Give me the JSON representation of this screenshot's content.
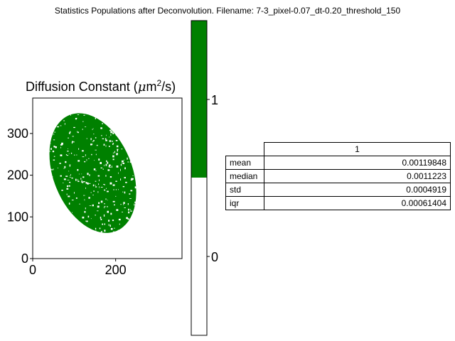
{
  "figure": {
    "title": "Statistics Populations after Deconvolution. Filename: 7-3_pixel-0.07_dt-0.20_threshold_150"
  },
  "chart_data": [
    {
      "type": "heatmap",
      "title": "Diffusion Constant (μm²/s)",
      "title_parts": {
        "prefix": "Diffusion Constant (",
        "mu": "μ",
        "unit": "m",
        "sup": "2",
        "suffix": "/s)"
      },
      "xlim": [
        0,
        360
      ],
      "ylim": [
        0,
        385
      ],
      "x_ticks": [
        0,
        200
      ],
      "y_ticks": [
        0,
        100,
        200,
        300
      ],
      "population_color": "#008000",
      "background_color": "#ffffff",
      "shape": "elliptical cell, centre about (145, 205), semi-axes about 95 by 150, tilted from upper-left to lower-right"
    },
    {
      "type": "colorbar",
      "tick_labels": [
        "0",
        "1"
      ],
      "segments": [
        {
          "label": "0",
          "color": "#ffffff"
        },
        {
          "label": "1",
          "color": "#008000"
        }
      ]
    },
    {
      "type": "table",
      "column_header": "1",
      "rows": [
        {
          "label": "mean",
          "value": "0.00119848"
        },
        {
          "label": "median",
          "value": "0.0011223"
        },
        {
          "label": "std",
          "value": "0.0004919"
        },
        {
          "label": "iqr",
          "value": "0.00061404"
        }
      ]
    }
  ]
}
